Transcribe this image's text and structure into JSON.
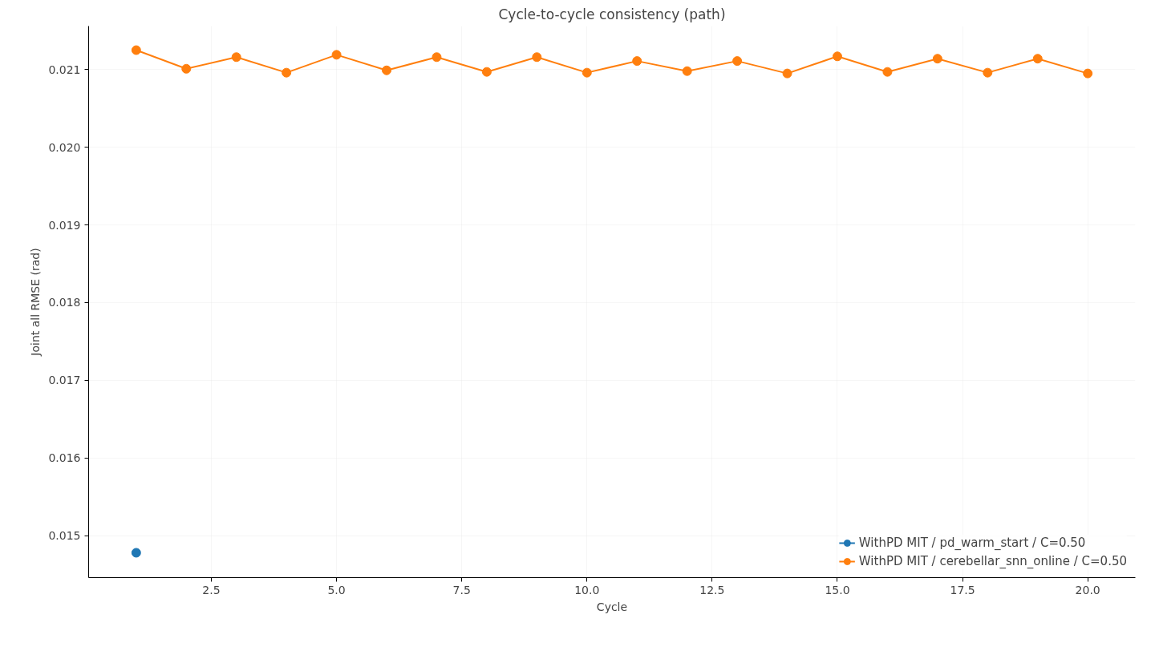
{
  "chart_data": {
    "type": "line",
    "title": "Cycle-to-cycle consistency (path)",
    "xlabel": "Cycle",
    "ylabel": "Joint all RMSE (rad)",
    "series": [
      {
        "name": "WithPD MIT / pd_warm_start / C=0.50",
        "color": "#1f77b4",
        "x": [
          1
        ],
        "values": [
          0.01478
        ]
      },
      {
        "name": "WithPD MIT / cerebellar_snn_online / C=0.50",
        "color": "#ff7f0e",
        "x": [
          1,
          2,
          3,
          4,
          5,
          6,
          7,
          8,
          9,
          10,
          11,
          12,
          13,
          14,
          15,
          16,
          17,
          18,
          19,
          20
        ],
        "values": [
          0.02125,
          0.02101,
          0.02116,
          0.02096,
          0.02119,
          0.02099,
          0.02116,
          0.02097,
          0.02116,
          0.02096,
          0.02111,
          0.02098,
          0.02111,
          0.02095,
          0.02117,
          0.02097,
          0.02114,
          0.02096,
          0.02114,
          0.02095
        ]
      }
    ],
    "xlim": [
      0.05,
      20.95
    ],
    "ylim": [
      0.01446,
      0.02156
    ],
    "xticks": [
      {
        "value": 2.5,
        "label": "2.5"
      },
      {
        "value": 5,
        "label": "5.0"
      },
      {
        "value": 7.5,
        "label": "7.5"
      },
      {
        "value": 10,
        "label": "10.0"
      },
      {
        "value": 12.5,
        "label": "12.5"
      },
      {
        "value": 15,
        "label": "15.0"
      },
      {
        "value": 17.5,
        "label": "17.5"
      },
      {
        "value": 20,
        "label": "20.0"
      }
    ],
    "yticks": [
      {
        "value": 0.015,
        "label": "0.015"
      },
      {
        "value": 0.016,
        "label": "0.016"
      },
      {
        "value": 0.017,
        "label": "0.017"
      },
      {
        "value": 0.018,
        "label": "0.018"
      },
      {
        "value": 0.019,
        "label": "0.019"
      },
      {
        "value": 0.02,
        "label": "0.020"
      },
      {
        "value": 0.021,
        "label": "0.021"
      }
    ],
    "grid": true,
    "legend": "bottom right",
    "marker": "circle",
    "line_style": "solid"
  }
}
